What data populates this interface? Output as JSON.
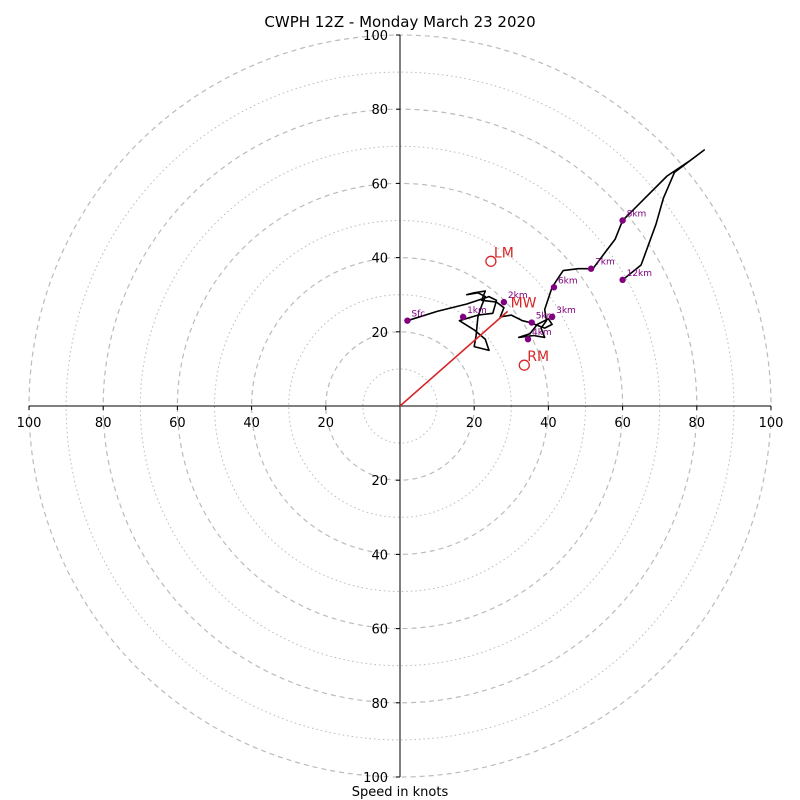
{
  "chart_data": {
    "type": "hodograph",
    "title": "CWPH 12Z - Monday March 23 2020",
    "xlabel": "Speed in knots",
    "axis_range": [
      -100,
      100
    ],
    "major_rings": [
      20,
      40,
      60,
      80,
      100
    ],
    "minor_rings": [
      10,
      30,
      50,
      70,
      90
    ],
    "x_ticks": [
      {
        "value": -100,
        "label": "100"
      },
      {
        "value": -80,
        "label": "80"
      },
      {
        "value": -60,
        "label": "60"
      },
      {
        "value": -40,
        "label": "40"
      },
      {
        "value": -20,
        "label": "20"
      },
      {
        "value": 20,
        "label": "20"
      },
      {
        "value": 40,
        "label": "40"
      },
      {
        "value": 60,
        "label": "60"
      },
      {
        "value": 80,
        "label": "80"
      },
      {
        "value": 100,
        "label": "100"
      }
    ],
    "y_ticks": [
      {
        "value": 100,
        "label": "100"
      },
      {
        "value": 80,
        "label": "80"
      },
      {
        "value": 60,
        "label": "60"
      },
      {
        "value": 40,
        "label": "40"
      },
      {
        "value": 20,
        "label": "20"
      },
      {
        "value": -20,
        "label": "20"
      },
      {
        "value": -40,
        "label": "40"
      },
      {
        "value": -60,
        "label": "60"
      },
      {
        "value": -80,
        "label": "80"
      },
      {
        "value": -100,
        "label": "100"
      }
    ],
    "trace": [
      [
        2,
        23
      ],
      [
        10,
        25.5
      ],
      [
        18,
        27.5
      ],
      [
        24,
        29.5
      ],
      [
        26,
        28.5
      ],
      [
        25,
        25
      ],
      [
        21,
        24.5
      ],
      [
        16,
        23
      ],
      [
        20,
        20.5
      ],
      [
        23,
        18
      ],
      [
        24,
        15
      ],
      [
        20,
        16
      ],
      [
        20.5,
        19
      ],
      [
        21,
        24
      ],
      [
        22,
        27
      ],
      [
        23,
        29.5
      ],
      [
        21,
        30.5
      ],
      [
        18,
        30
      ],
      [
        20,
        30.5
      ],
      [
        23,
        31
      ],
      [
        22,
        28.5
      ],
      [
        26,
        28
      ],
      [
        28,
        26.5
      ],
      [
        27,
        24
      ],
      [
        30,
        24.5
      ],
      [
        33,
        23
      ],
      [
        35,
        22.5
      ],
      [
        39,
        21
      ],
      [
        41,
        22
      ],
      [
        40,
        23.5
      ],
      [
        37,
        22
      ],
      [
        35,
        19.5
      ],
      [
        32,
        18.5
      ],
      [
        36,
        19
      ],
      [
        39,
        18.5
      ],
      [
        38,
        21
      ],
      [
        39.5,
        23
      ],
      [
        39,
        26
      ],
      [
        40,
        29
      ],
      [
        41,
        32
      ],
      [
        43,
        35
      ],
      [
        44,
        36.5
      ],
      [
        48,
        37
      ],
      [
        52,
        37
      ],
      [
        55,
        41
      ],
      [
        58,
        45
      ],
      [
        60,
        50
      ],
      [
        66,
        56
      ],
      [
        72,
        62
      ],
      [
        78,
        66
      ],
      [
        82,
        69
      ],
      [
        74,
        63
      ],
      [
        71,
        56
      ],
      [
        69,
        49
      ],
      [
        65,
        38
      ],
      [
        60,
        34
      ]
    ],
    "height_markers": [
      {
        "label": "Sfc",
        "u": 2,
        "v": 23
      },
      {
        "label": "1km",
        "u": 17,
        "v": 24
      },
      {
        "label": "2km",
        "u": 28,
        "v": 28
      },
      {
        "label": "3km",
        "u": 41,
        "v": 24
      },
      {
        "label": "4km",
        "u": 34.5,
        "v": 18
      },
      {
        "label": "5km",
        "u": 35.5,
        "v": 22.5
      },
      {
        "label": "6km",
        "u": 41.5,
        "v": 32
      },
      {
        "label": "7km",
        "u": 51.5,
        "v": 37
      },
      {
        "label": "8km",
        "u": 60,
        "v": 50
      },
      {
        "label": "12km",
        "u": 60,
        "v": 34
      }
    ],
    "storm_motion": [
      {
        "label": "LM",
        "u": 24.5,
        "v": 39
      },
      {
        "label": "MW",
        "u": 29,
        "v": 25.5
      },
      {
        "label": "RM",
        "u": 33.5,
        "v": 11
      }
    ],
    "storm_vector": {
      "from": [
        0,
        0
      ],
      "to": [
        29,
        25.5
      ]
    },
    "colors": {
      "trace": "#000000",
      "markers": "#800080",
      "storm": "#d62728",
      "grid": "#bbbbbb"
    },
    "grid": true
  }
}
